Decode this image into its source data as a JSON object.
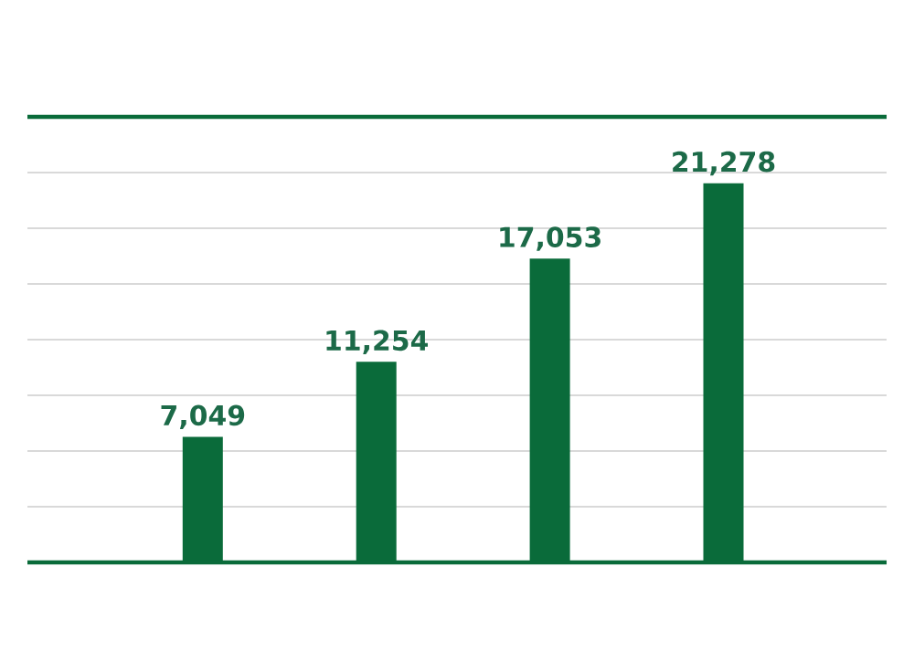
{
  "chart_data": {
    "type": "bar",
    "categories": [
      null,
      null,
      null,
      null
    ],
    "values": [
      7049,
      11254,
      17053,
      21278
    ],
    "value_labels": [
      "7,049",
      "11,254",
      "17,053",
      "21,278"
    ],
    "color": "#0a6b3a",
    "grid": "y"
  }
}
